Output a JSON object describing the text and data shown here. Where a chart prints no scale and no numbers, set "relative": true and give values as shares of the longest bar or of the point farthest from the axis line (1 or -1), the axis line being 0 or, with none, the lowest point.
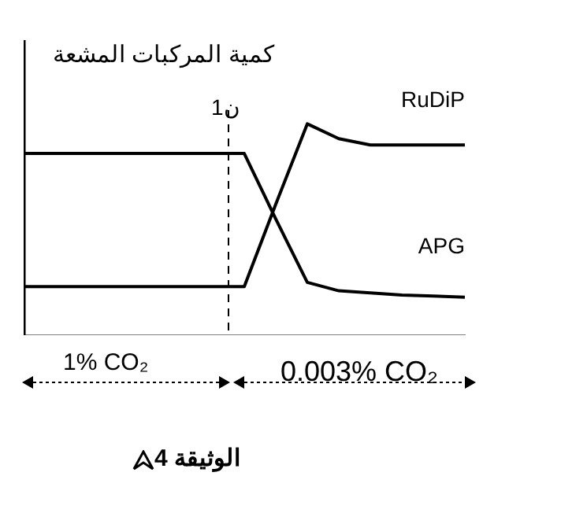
{
  "chart_data": {
    "type": "line",
    "relative": true,
    "ylabel": "كمية المركبات المشعة",
    "marker": "none",
    "line_style": "solid",
    "categories": [
      null,
      null,
      null,
      null,
      null,
      null,
      null,
      null,
      null,
      null,
      null,
      null,
      null,
      null,
      null
    ],
    "series": [
      {
        "name": "RuDiP",
        "color": "#000000",
        "values": [
          0.23,
          0.23,
          0.23,
          0.23,
          0.23,
          0.23,
          0.23,
          0.23,
          0.62,
          1,
          0.93,
          0.9,
          0.9,
          0.9,
          0.9
        ]
      },
      {
        "name": "APG",
        "color": "#000000",
        "values": [
          0.86,
          0.86,
          0.86,
          0.86,
          0.86,
          0.86,
          0.86,
          0.86,
          0.55,
          0.25,
          0.21,
          0.2,
          0.19,
          0.185,
          0.18
        ]
      }
    ],
    "annotations": [
      "1% CO₂",
      "0.003% CO₂",
      "الوثيقة 4",
      "ن1"
    ]
  }
}
